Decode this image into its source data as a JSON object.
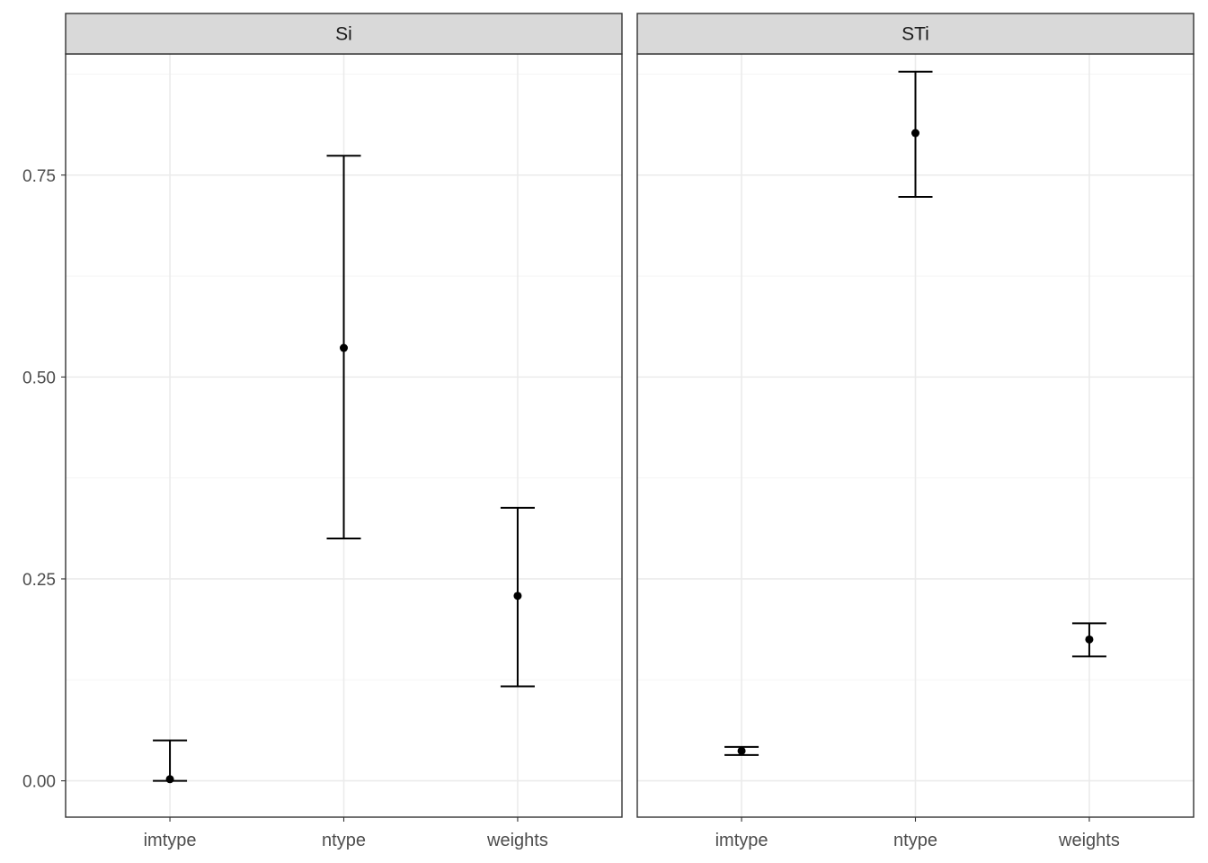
{
  "chart_data": {
    "type": "errorbar",
    "y_range": [
      -0.045,
      0.9
    ],
    "y_ticks": [
      0.0,
      0.25,
      0.5,
      0.75
    ],
    "y_tick_labels": [
      "0.00",
      "0.25",
      "0.50",
      "0.75"
    ],
    "y_minor_ticks": [
      0.125,
      0.375,
      0.625,
      0.875
    ],
    "categories": [
      "imtype",
      "ntype",
      "weights"
    ],
    "grid": true,
    "facets": [
      {
        "name": "Si",
        "points": [
          {
            "x": "imtype",
            "y": 0.002,
            "ymin": 0.0,
            "ymax": 0.05
          },
          {
            "x": "ntype",
            "y": 0.536,
            "ymin": 0.3,
            "ymax": 0.774
          },
          {
            "x": "weights",
            "y": 0.229,
            "ymin": 0.117,
            "ymax": 0.338
          }
        ]
      },
      {
        "name": "STi",
        "points": [
          {
            "x": "imtype",
            "y": 0.037,
            "ymin": 0.032,
            "ymax": 0.042
          },
          {
            "x": "ntype",
            "y": 0.802,
            "ymin": 0.723,
            "ymax": 0.878
          },
          {
            "x": "weights",
            "y": 0.175,
            "ymin": 0.154,
            "ymax": 0.195
          }
        ]
      }
    ]
  },
  "colors": {
    "strip_fill": "#d9d9d9",
    "panel_border": "#333333",
    "grid_major": "#ebebeb",
    "grid_minor": "#f5f5f5",
    "mark": "#000000"
  }
}
